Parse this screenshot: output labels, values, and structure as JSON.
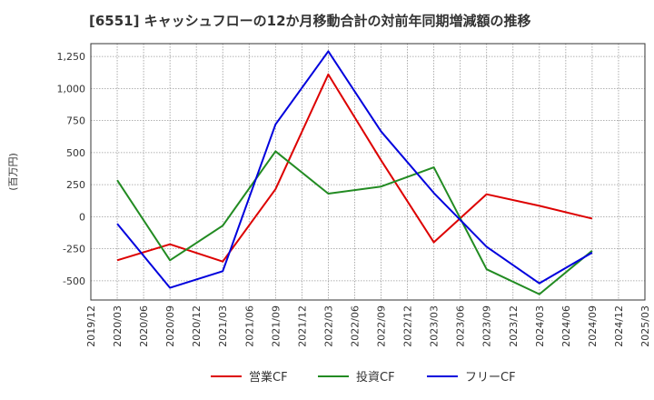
{
  "chart_data": {
    "type": "line",
    "title": "[6551]  キャッシュフローの12か月移動合計の対前年同期増減額の推移",
    "ylabel": "(百万円)",
    "xlabel": "",
    "ylim": [
      -650,
      1350
    ],
    "yticks": [
      -500,
      -250,
      0,
      250,
      500,
      750,
      1000,
      1250
    ],
    "ytick_labels": [
      "-500",
      "-250",
      "0",
      "250",
      "500",
      "750",
      "1,000",
      "1,250"
    ],
    "xticks": [
      "2019/12",
      "2020/03",
      "2020/06",
      "2020/09",
      "2020/12",
      "2021/03",
      "2021/06",
      "2021/09",
      "2021/12",
      "2022/03",
      "2022/06",
      "2022/09",
      "2022/12",
      "2023/03",
      "2023/06",
      "2023/09",
      "2023/12",
      "2024/03",
      "2024/06",
      "2024/09",
      "2024/12",
      "2025/03"
    ],
    "grid": true,
    "legend_position": "bottom",
    "series": [
      {
        "name": "営業CF",
        "color": "#dd0000",
        "x": [
          "2020/03",
          "2020/09",
          "2021/03",
          "2021/09",
          "2022/03",
          "2022/09",
          "2023/03",
          "2023/09",
          "2024/03",
          "2024/09"
        ],
        "values": [
          -340,
          -215,
          -350,
          215,
          1110,
          440,
          -200,
          175,
          85,
          -15
        ]
      },
      {
        "name": "投資CF",
        "color": "#228b22",
        "x": [
          "2020/03",
          "2020/09",
          "2021/03",
          "2021/09",
          "2022/03",
          "2022/09",
          "2023/03",
          "2023/09",
          "2024/03",
          "2024/09"
        ],
        "values": [
          285,
          -340,
          -70,
          510,
          180,
          235,
          385,
          -410,
          -605,
          -265
        ]
      },
      {
        "name": "フリーCF",
        "color": "#0000dd",
        "x": [
          "2020/03",
          "2020/09",
          "2021/03",
          "2021/09",
          "2022/03",
          "2022/09",
          "2023/03",
          "2023/09",
          "2024/03",
          "2024/09"
        ],
        "values": [
          -55,
          -555,
          -425,
          720,
          1290,
          665,
          185,
          -235,
          -520,
          -280
        ]
      }
    ]
  }
}
